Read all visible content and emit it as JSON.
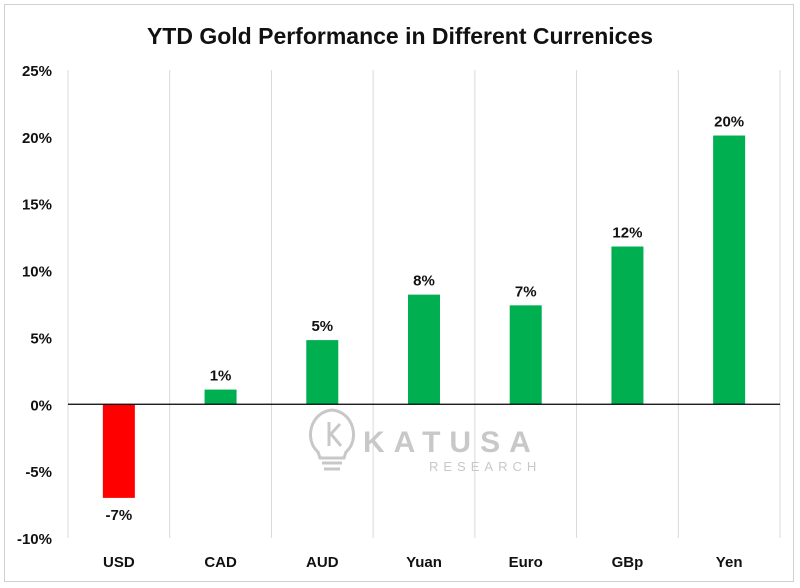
{
  "chart_data": {
    "type": "bar",
    "title": "YTD Gold Performance in Different Currenices",
    "xlabel": "",
    "ylabel": "",
    "categories": [
      "USD",
      "CAD",
      "AUD",
      "Yuan",
      "Euro",
      "GBp",
      "Yen"
    ],
    "values": [
      -7,
      1,
      5,
      8,
      7,
      12,
      20
    ],
    "value_precise": [
      -7.0,
      1.1,
      4.8,
      8.2,
      7.4,
      11.8,
      20.1
    ],
    "data_labels": [
      "-7%",
      "1%",
      "5%",
      "8%",
      "7%",
      "12%",
      "20%"
    ],
    "ylim": [
      -10,
      25
    ],
    "yticks": [
      25,
      20,
      15,
      10,
      5,
      0,
      -5,
      -10
    ],
    "ytick_labels": [
      "25%",
      "20%",
      "15%",
      "10%",
      "5%",
      "0%",
      "-5%",
      "-10%"
    ],
    "grid": "vertical",
    "colors": {
      "positive": "#00b050",
      "negative": "#ff0000",
      "grid": "#d9d9d9",
      "axis": "#000000"
    }
  },
  "watermark": {
    "brand": "KATUSA",
    "sub": "RESEARCH",
    "icon": "lightbulb-k-icon",
    "color": "#c8c8c8"
  }
}
